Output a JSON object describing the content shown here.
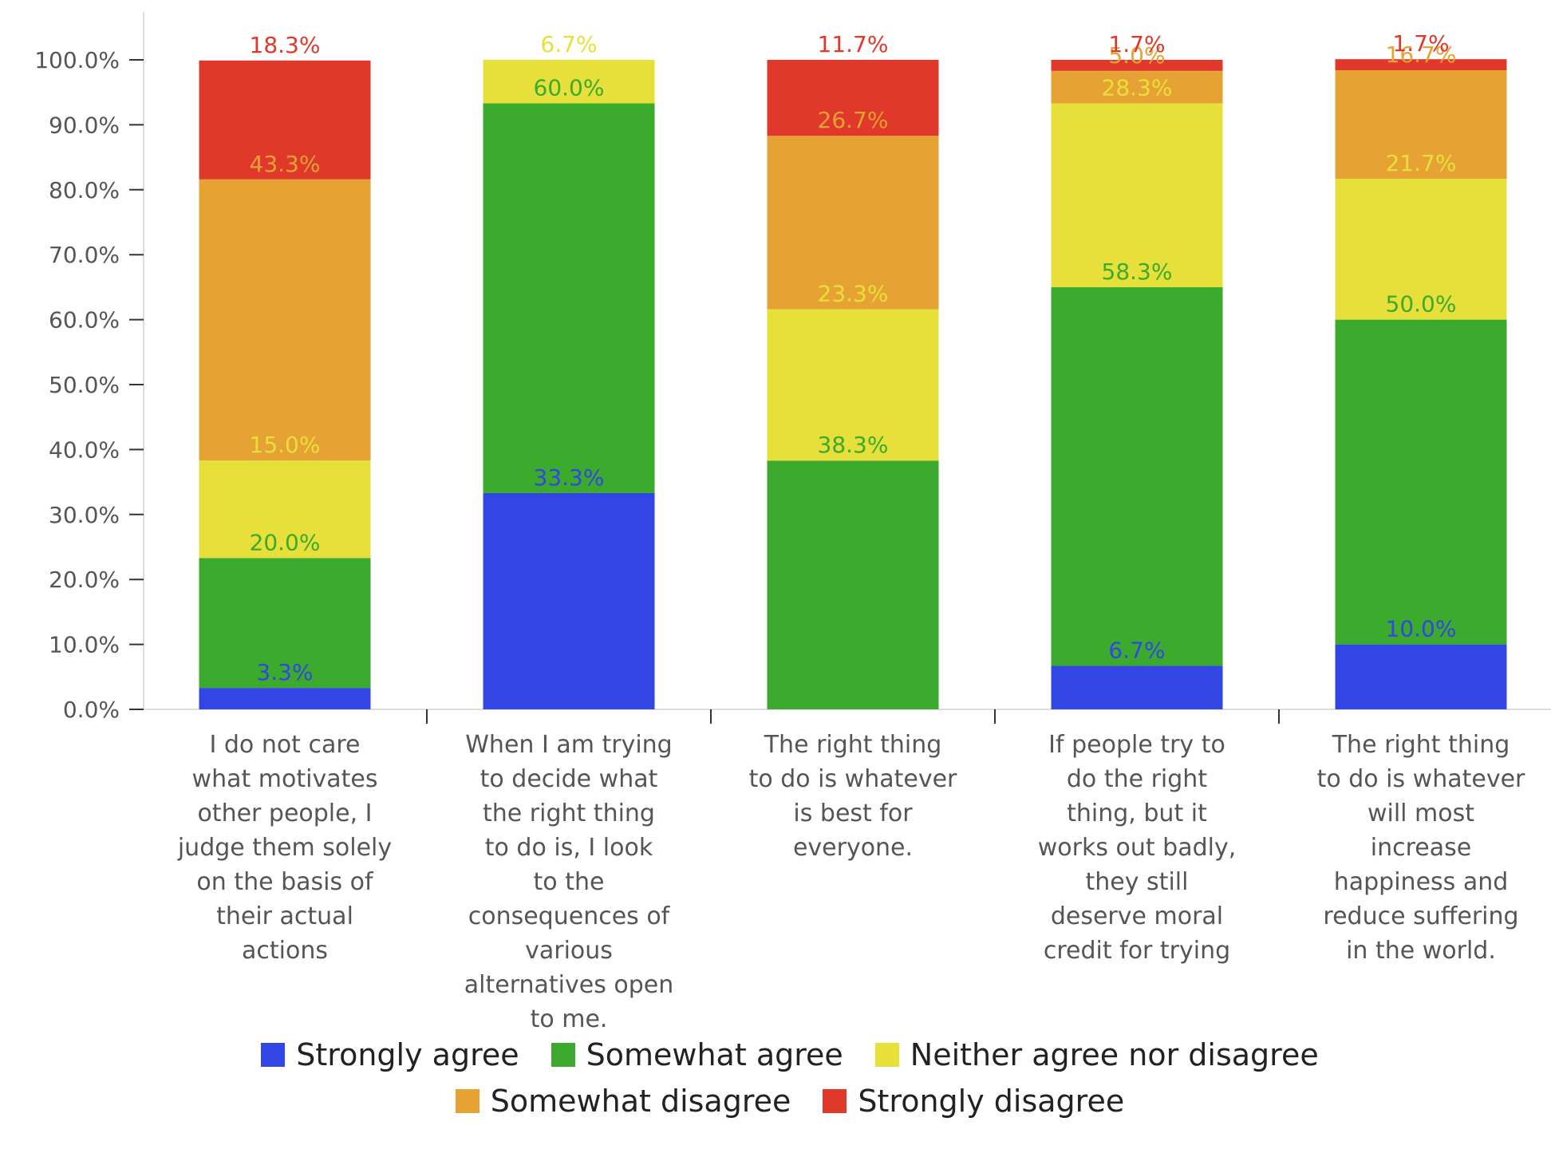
{
  "chart_data": {
    "type": "bar",
    "stacked": true,
    "title": "",
    "xlabel": "",
    "ylabel": "",
    "ylim": [
      0,
      100
    ],
    "y_ticks": [
      "0.0%",
      "10.0%",
      "20.0%",
      "30.0%",
      "40.0%",
      "50.0%",
      "60.0%",
      "70.0%",
      "80.0%",
      "90.0%",
      "100.0%"
    ],
    "grid": false,
    "legend_position": "bottom",
    "categories": [
      "I do not care what motivates other people, I judge them solely on the basis of their actual actions",
      "When I am trying to decide what the right thing to do is, I look to the consequences of various alternatives open to me.",
      "The right thing to do is whatever is best for everyone.",
      "If people try to do the right thing, but it works out badly, they still deserve moral credit for trying",
      "The right thing to do is whatever will most increase happiness and reduce suffering in the world."
    ],
    "category_lines": [
      [
        "I do not care",
        "what motivates",
        "other people, I",
        "judge them solely",
        "on the basis of",
        "their actual",
        "actions"
      ],
      [
        "When I am trying",
        "to decide what",
        "the right thing",
        "to do is, I look",
        "to the",
        "consequences of",
        "various",
        "alternatives open",
        "to me."
      ],
      [
        "The right thing",
        "to do is whatever",
        "is best for",
        "everyone."
      ],
      [
        "If people try to",
        "do the right",
        "thing, but it",
        "works out badly,",
        "they still",
        "deserve moral",
        "credit for trying"
      ],
      [
        "The right thing",
        "to do is whatever",
        "will most",
        "increase",
        "happiness and",
        "reduce suffering",
        "in the world."
      ]
    ],
    "series": [
      {
        "name": "Strongly agree",
        "color": "#3146E3",
        "values": [
          3.3,
          33.3,
          0,
          6.7,
          10.0
        ],
        "labels": [
          "3.3%",
          "33.3%",
          "",
          "6.7%",
          "10.0%"
        ]
      },
      {
        "name": "Somewhat agree",
        "color": "#3BAA2D",
        "values": [
          20.0,
          60.0,
          38.3,
          58.3,
          50.0
        ],
        "labels": [
          "20.0%",
          "60.0%",
          "38.3%",
          "58.3%",
          "50.0%"
        ]
      },
      {
        "name": "Neither agree nor disagree",
        "color": "#E8E03A",
        "values": [
          15.0,
          6.7,
          23.3,
          28.3,
          21.7
        ],
        "labels": [
          "15.0%",
          "6.7%",
          "23.3%",
          "28.3%",
          "21.7%"
        ]
      },
      {
        "name": "Somewhat disagree",
        "color": "#E6A233",
        "values": [
          43.3,
          0,
          26.7,
          5.0,
          16.7
        ],
        "labels": [
          "43.3%",
          "",
          "26.7%",
          "5.0%",
          "16.7%"
        ]
      },
      {
        "name": "Strongly disagree",
        "color": "#E1382C",
        "values": [
          18.3,
          0,
          11.7,
          1.7,
          1.7
        ],
        "labels": [
          "18.3%",
          "",
          "11.7%",
          "1.7%",
          "1.7%"
        ]
      }
    ]
  }
}
